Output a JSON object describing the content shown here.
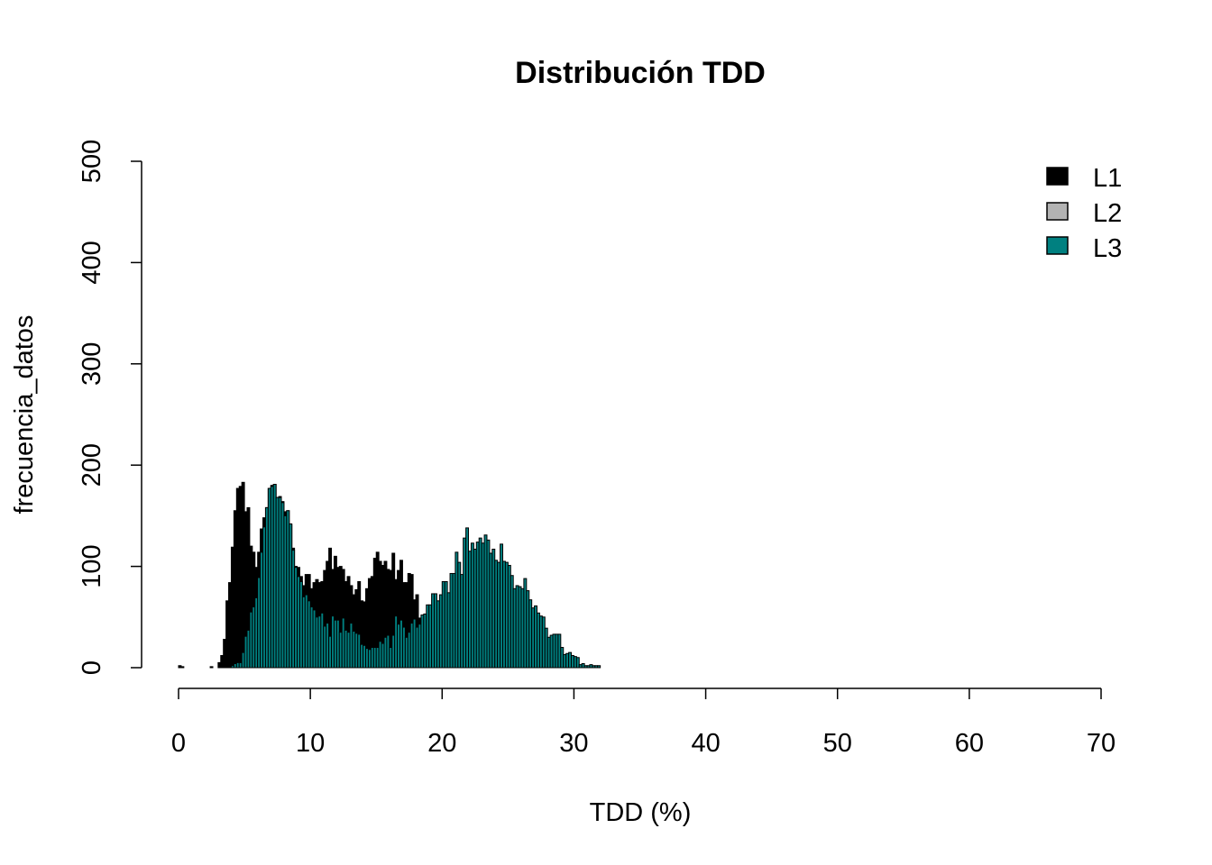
{
  "chart_data": {
    "type": "bar",
    "subtype": "overlaid-histogram",
    "title": "Distribución TDD",
    "xlabel": "TDD (%)",
    "ylabel": "frecuencia_datos",
    "xlim": [
      0,
      70
    ],
    "ylim": [
      0,
      500
    ],
    "xticks": [
      "0",
      "10",
      "20",
      "30",
      "40",
      "50",
      "60",
      "70"
    ],
    "xtick_values": [
      0,
      10,
      20,
      30,
      40,
      50,
      60,
      70
    ],
    "yticks": [
      "0",
      "100",
      "200",
      "300",
      "400",
      "500"
    ],
    "ytick_values": [
      0,
      100,
      200,
      300,
      400,
      500
    ],
    "grid": false,
    "legend_position": "top-right",
    "bin_start": 0,
    "bin_width": 0.2,
    "series": [
      {
        "name": "L1",
        "color": "#000000",
        "values": [
          2,
          1,
          0,
          0,
          0,
          0,
          0,
          0,
          0,
          0,
          0,
          0,
          1,
          0,
          0,
          5,
          12,
          28,
          66,
          84,
          119,
          155,
          177,
          179,
          183,
          154,
          158,
          120,
          114,
          99,
          114,
          137,
          148,
          158,
          177,
          180,
          181,
          168,
          169,
          164,
          154,
          155,
          141,
          118,
          100,
          99,
          90,
          81,
          92,
          92,
          78,
          84,
          87,
          84,
          85,
          96,
          105,
          118,
          97,
          110,
          99,
          100,
          97,
          85,
          90,
          81,
          72,
          77,
          85,
          66,
          65,
          78,
          88,
          90,
          108,
          114,
          105,
          101,
          105,
          97,
          96,
          113,
          87,
          96,
          106,
          84,
          84,
          93,
          92,
          67,
          72,
          49,
          0,
          0,
          0,
          0,
          0,
          0,
          0,
          0,
          0,
          0,
          0,
          0,
          0,
          0,
          0,
          0,
          0,
          0,
          0,
          0,
          0,
          0,
          0,
          0,
          0,
          0,
          0,
          0,
          0,
          0,
          0,
          0,
          0,
          0,
          0,
          0,
          0,
          0,
          0,
          0,
          0,
          0,
          0,
          0,
          0,
          0,
          0,
          0,
          0,
          0,
          0,
          0,
          0,
          0,
          0,
          0,
          0,
          0,
          0,
          0,
          0,
          0,
          0,
          0
        ]
      },
      {
        "name": "L2",
        "color": "#b3b3b3",
        "values": []
      },
      {
        "name": "L3",
        "color": "#008080",
        "values": [
          0,
          0,
          0,
          0,
          0,
          0,
          0,
          0,
          0,
          0,
          0,
          0,
          0,
          0,
          0,
          0,
          0,
          0,
          0,
          0,
          2,
          4,
          5,
          5,
          15,
          31,
          37,
          55,
          60,
          69,
          89,
          114,
          139,
          158,
          177,
          179,
          181,
          168,
          168,
          163,
          150,
          155,
          142,
          116,
          99,
          90,
          85,
          70,
          72,
          66,
          60,
          57,
          50,
          51,
          54,
          41,
          44,
          31,
          51,
          47,
          47,
          35,
          49,
          37,
          35,
          44,
          36,
          34,
          33,
          23,
          22,
          19,
          18,
          20,
          20,
          20,
          26,
          24,
          30,
          32,
          20,
          32,
          51,
          43,
          47,
          40,
          30,
          35,
          44,
          48,
          40,
          43,
          52,
          53,
          62,
          62,
          73,
          73,
          66,
          72,
          85,
          85,
          74,
          93,
          93,
          114,
          104,
          92,
          128,
          138,
          115,
          123,
          117,
          124,
          128,
          123,
          131,
          126,
          113,
          117,
          106,
          104,
          122,
          105,
          104,
          101,
          91,
          78,
          81,
          80,
          78,
          88,
          76,
          67,
          59,
          61,
          54,
          51,
          50,
          39,
          30,
          32,
          33,
          33,
          33,
          20,
          13,
          14,
          15,
          12,
          11,
          10,
          3,
          4,
          2,
          2,
          3,
          2,
          2,
          2
        ]
      }
    ]
  }
}
